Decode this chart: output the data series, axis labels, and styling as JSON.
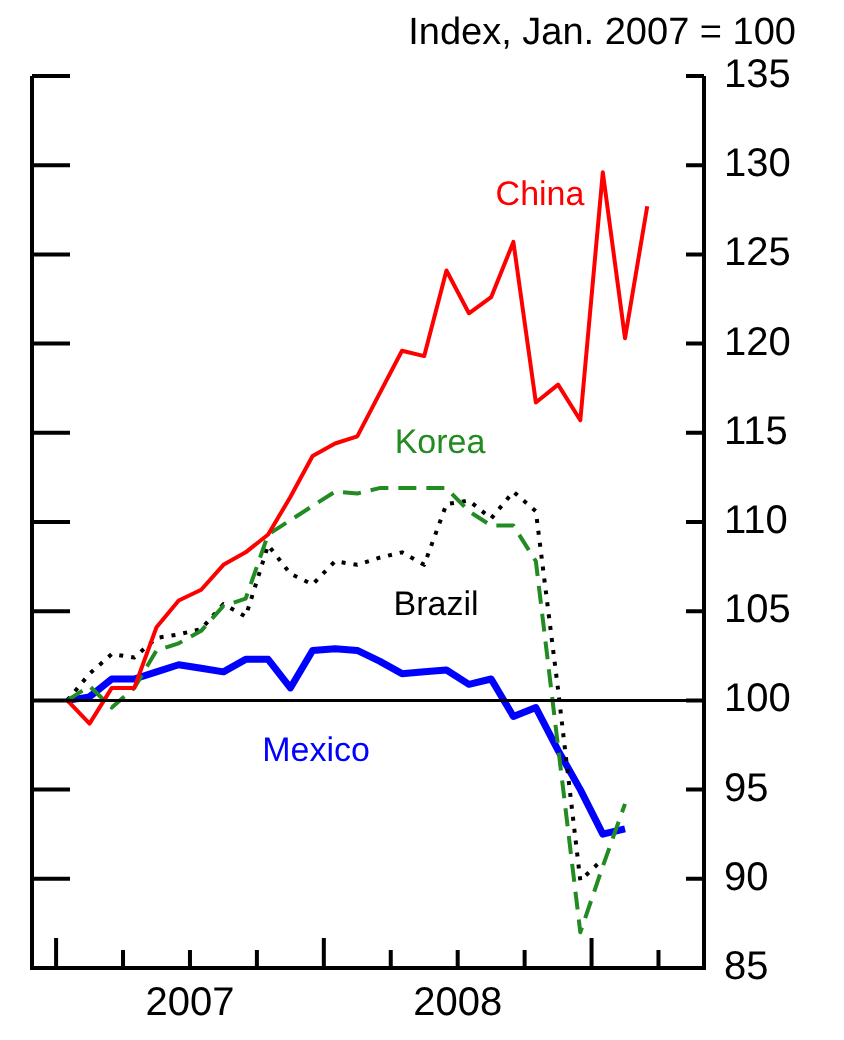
{
  "chart_data": {
    "type": "line",
    "ylabel": "Index, Jan. 2007 = 100",
    "x": [
      2007.042,
      2007.125,
      2007.208,
      2007.292,
      2007.375,
      2007.458,
      2007.542,
      2007.625,
      2007.708,
      2007.792,
      2007.875,
      2007.958,
      2008.042,
      2008.125,
      2008.208,
      2008.292,
      2008.375,
      2008.458,
      2008.542,
      2008.625,
      2008.708,
      2008.792,
      2008.875,
      2008.958,
      2009.042,
      2009.125,
      2009.208
    ],
    "series": [
      {
        "name": "China",
        "color": "#ff0000",
        "line_style": "solid",
        "values": [
          100,
          98.7,
          100.7,
          100.7,
          104.1,
          105.6,
          106.2,
          107.6,
          108.3,
          109.3,
          111.4,
          113.7,
          114.4,
          114.8,
          117.2,
          119.6,
          119.3,
          124.1,
          121.7,
          122.6,
          125.7,
          116.7,
          117.7,
          115.7,
          129.6,
          120.3,
          127.7
        ]
      },
      {
        "name": "Korea",
        "color": "#228b22",
        "line_style": "dashed",
        "values": [
          100,
          100.8,
          99.6,
          100.7,
          102.8,
          103.2,
          103.9,
          105.3,
          105.7,
          109.3,
          110.1,
          110.9,
          111.7,
          111.6,
          111.9,
          111.9,
          111.9,
          111.9,
          110.6,
          109.8,
          109.8,
          107.8,
          97.4,
          87.0,
          90.7,
          94.2,
          null
        ]
      },
      {
        "name": "Brazil",
        "color": "#000000",
        "line_style": "dotted",
        "values": [
          100,
          101.5,
          102.6,
          102.4,
          103.5,
          103.7,
          104.0,
          105.4,
          104.7,
          108.7,
          107.1,
          106.5,
          107.8,
          107.6,
          108.0,
          108.3,
          107.6,
          111.0,
          111.2,
          110.2,
          111.7,
          110.6,
          100.6,
          89.9,
          91.1,
          null,
          null
        ]
      },
      {
        "name": "Mexico",
        "color": "#0000ff",
        "line_style": "solid",
        "values": [
          100,
          100.2,
          101.2,
          101.2,
          101.6,
          102.0,
          101.8,
          101.6,
          102.3,
          102.3,
          100.7,
          102.8,
          102.9,
          102.8,
          102.2,
          101.5,
          101.6,
          101.7,
          100.9,
          101.2,
          99.1,
          99.6,
          97.2,
          95.0,
          92.5,
          92.8,
          null
        ]
      }
    ],
    "xlim": [
      2006.91,
      2009.42
    ],
    "xticks": [
      {
        "value": 2007,
        "label": null
      },
      {
        "value": 2007.25,
        "label": null
      },
      {
        "value": 2007.5,
        "label": "2007"
      },
      {
        "value": 2007.75,
        "label": null
      },
      {
        "value": 2008,
        "label": null
      },
      {
        "value": 2008.25,
        "label": null
      },
      {
        "value": 2008.5,
        "label": "2008"
      },
      {
        "value": 2008.75,
        "label": null
      },
      {
        "value": 2009,
        "label": null
      },
      {
        "value": 2009.25,
        "label": null
      }
    ],
    "ylim": [
      85,
      135
    ],
    "yticks": [
      85,
      90,
      95,
      100,
      105,
      110,
      115,
      120,
      125,
      130,
      135
    ],
    "ref_lines": [
      {
        "axis": "y",
        "value": 100,
        "color": "#000000"
      }
    ],
    "grid": false,
    "legend": false,
    "marker": "none"
  }
}
